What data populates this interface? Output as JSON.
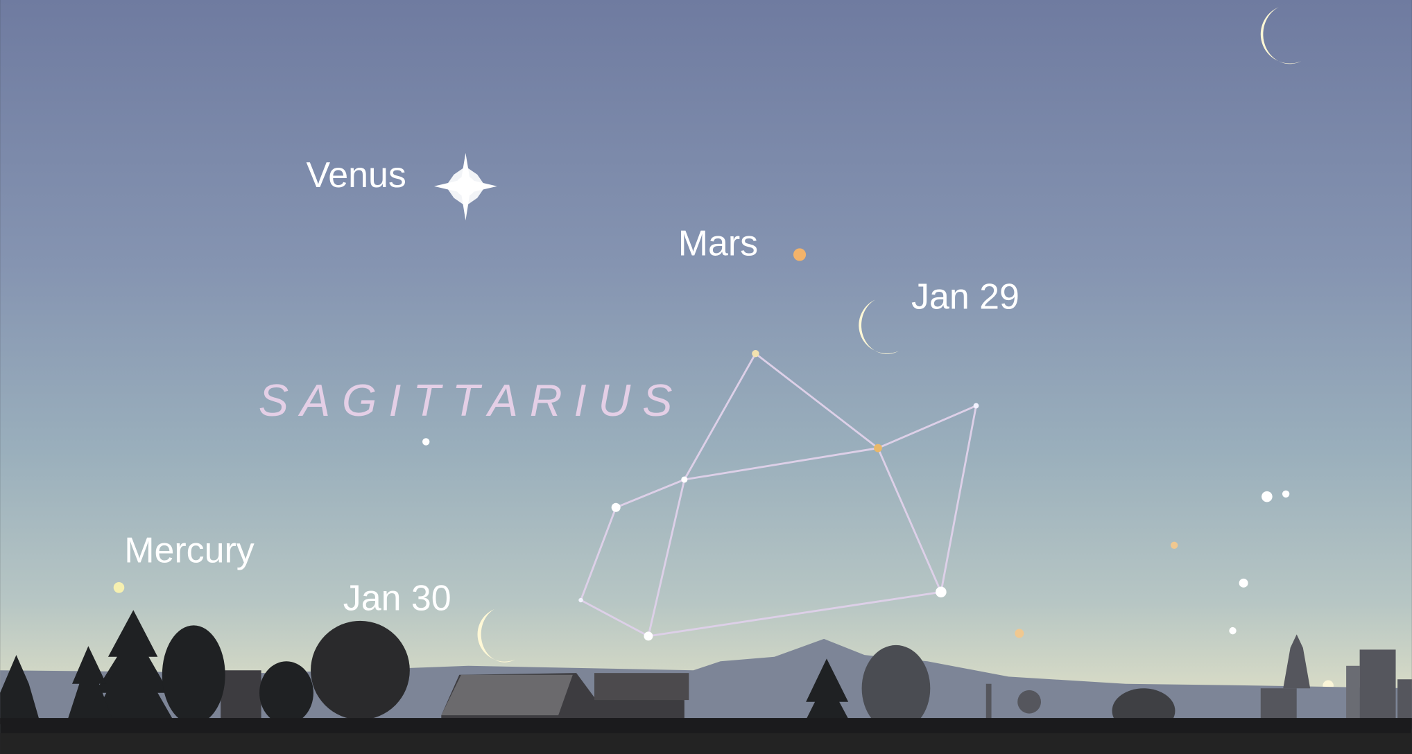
{
  "planets": [
    {
      "label": "Venus"
    },
    {
      "label": "Mars"
    },
    {
      "label": "Mercury"
    }
  ],
  "moons": [
    {
      "label": "Jan 29"
    },
    {
      "label": "Jan 30"
    }
  ],
  "constellation": {
    "name": "SAGITTARIUS"
  }
}
